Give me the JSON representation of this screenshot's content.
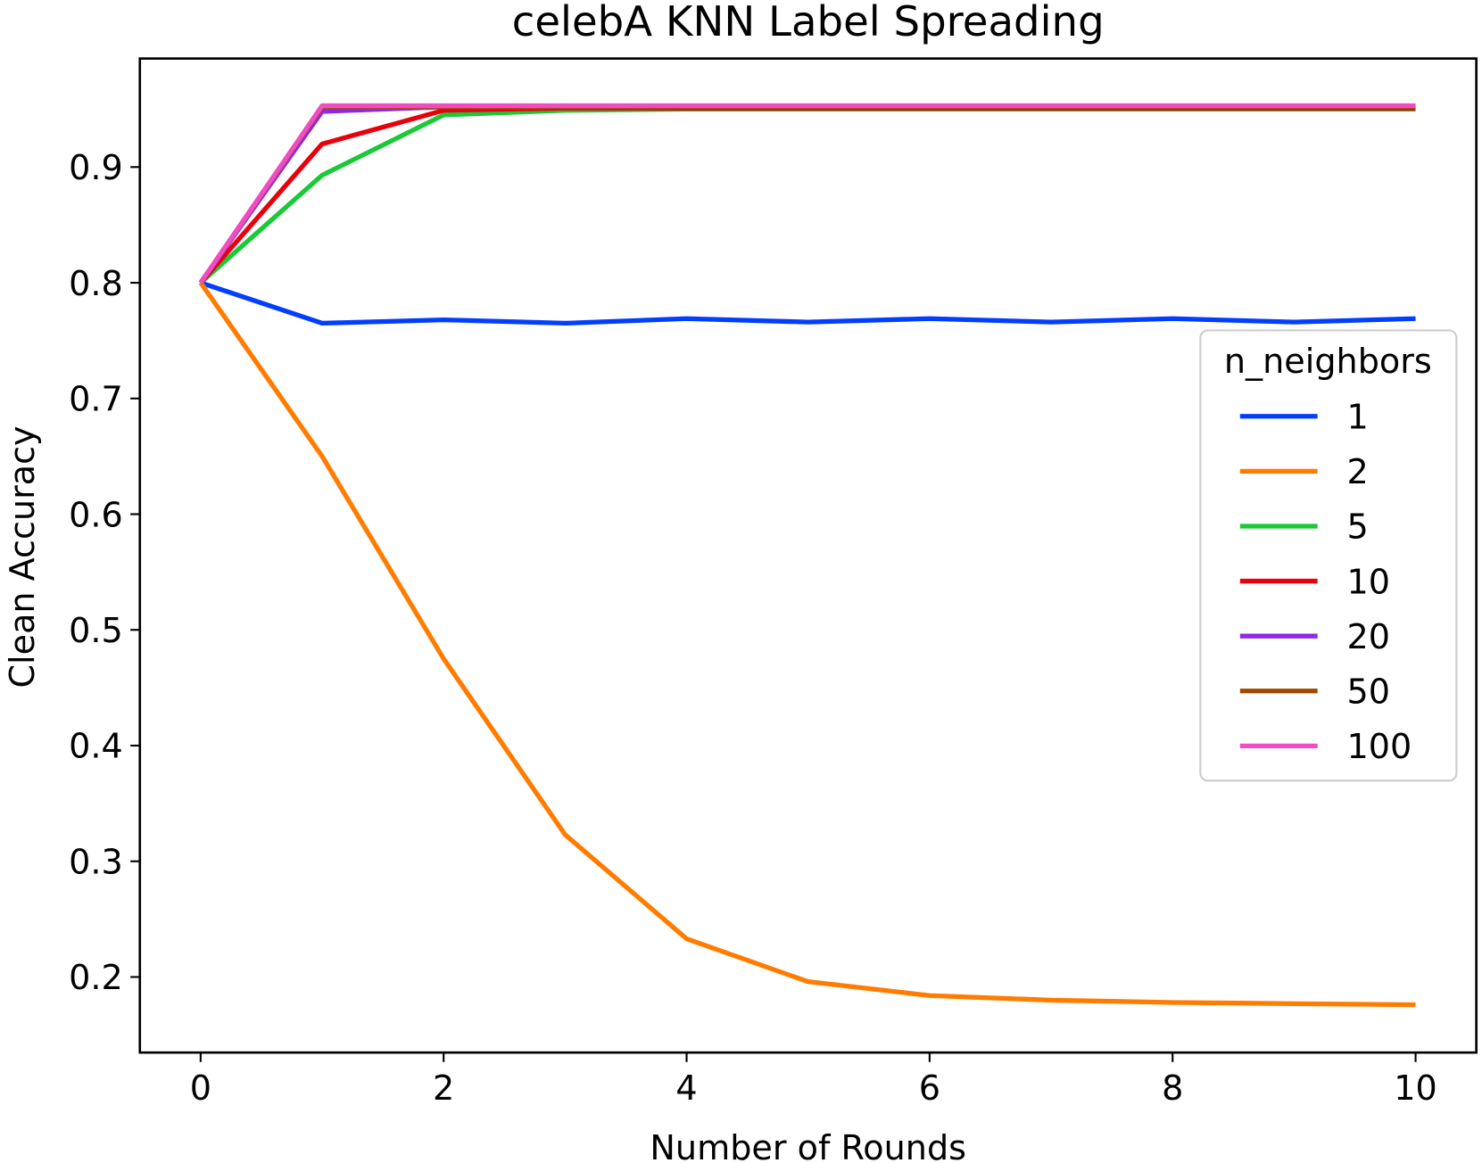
{
  "chart_data": {
    "type": "line",
    "title": "celebA KNN Label Spreading",
    "x_label": "Number of Rounds",
    "y_label": "Clean Accuracy",
    "x": [
      0,
      1,
      2,
      3,
      4,
      5,
      6,
      7,
      8,
      9,
      10
    ],
    "xlim": [
      -0.5,
      10.5
    ],
    "xticks": [
      0,
      2,
      4,
      6,
      8,
      10
    ],
    "ylim": [
      0.1347,
      0.9938
    ],
    "yticks": [
      0.2,
      0.3,
      0.4,
      0.5,
      0.6,
      0.7,
      0.8,
      0.9
    ],
    "legend_title": "n_neighbors",
    "legend_position": "right",
    "series": [
      {
        "name": "1",
        "color": "#023eff",
        "values": [
          0.8,
          0.765,
          0.768,
          0.765,
          0.769,
          0.766,
          0.769,
          0.766,
          0.769,
          0.766,
          0.769
        ]
      },
      {
        "name": "2",
        "color": "#ff7c00",
        "values": [
          0.8,
          0.65,
          0.475,
          0.323,
          0.233,
          0.196,
          0.184,
          0.18,
          0.178,
          0.177,
          0.176
        ]
      },
      {
        "name": "5",
        "color": "#1ac938",
        "values": [
          0.8,
          0.893,
          0.945,
          0.949,
          0.95,
          0.95,
          0.95,
          0.95,
          0.95,
          0.95,
          0.95
        ]
      },
      {
        "name": "10",
        "color": "#e8000b",
        "values": [
          0.8,
          0.92,
          0.949,
          0.951,
          0.951,
          0.951,
          0.951,
          0.951,
          0.951,
          0.951,
          0.951
        ]
      },
      {
        "name": "20",
        "color": "#8b2be2",
        "values": [
          0.8,
          0.948,
          0.952,
          0.952,
          0.952,
          0.952,
          0.952,
          0.952,
          0.952,
          0.952,
          0.952
        ]
      },
      {
        "name": "50",
        "color": "#9f4800",
        "values": [
          0.8,
          0.952,
          0.952,
          0.952,
          0.952,
          0.952,
          0.952,
          0.952,
          0.952,
          0.952,
          0.952
        ]
      },
      {
        "name": "100",
        "color": "#f14cc1",
        "values": [
          0.8,
          0.953,
          0.953,
          0.953,
          0.953,
          0.953,
          0.953,
          0.953,
          0.953,
          0.953,
          0.953
        ]
      }
    ]
  }
}
